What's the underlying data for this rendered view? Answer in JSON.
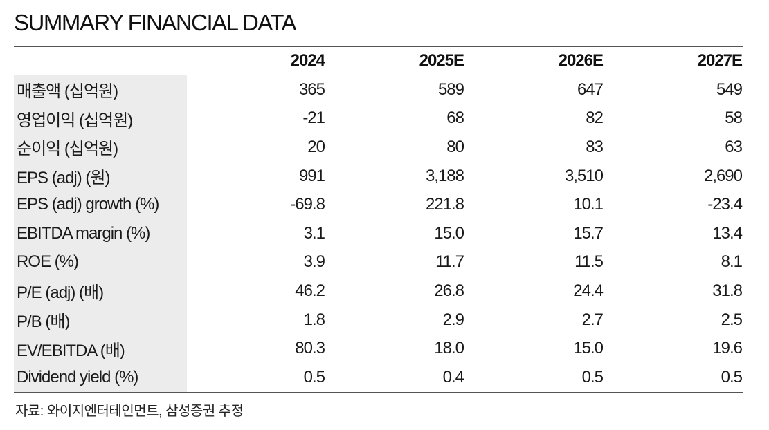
{
  "title": "SUMMARY FINANCIAL DATA",
  "table": {
    "columns": [
      "",
      "2024",
      "2025E",
      "2026E",
      "2027E"
    ],
    "rows": [
      {
        "label": "매출액 (십억원)",
        "values": [
          "365",
          "589",
          "647",
          "549"
        ]
      },
      {
        "label": "영업이익 (십억원)",
        "values": [
          "-21",
          "68",
          "82",
          "58"
        ]
      },
      {
        "label": "순이익 (십억원)",
        "values": [
          "20",
          "80",
          "83",
          "63"
        ]
      },
      {
        "label": "EPS (adj) (원)",
        "values": [
          "991",
          "3,188",
          "3,510",
          "2,690"
        ]
      },
      {
        "label": "EPS (adj) growth (%)",
        "values": [
          "-69.8",
          "221.8",
          "10.1",
          "-23.4"
        ]
      },
      {
        "label": "EBITDA margin (%)",
        "values": [
          "3.1",
          "15.0",
          "15.7",
          "13.4"
        ]
      },
      {
        "label": "ROE (%)",
        "values": [
          "3.9",
          "11.7",
          "11.5",
          "8.1"
        ]
      },
      {
        "label": "P/E (adj) (배)",
        "values": [
          "46.2",
          "26.8",
          "24.4",
          "31.8"
        ]
      },
      {
        "label": "P/B (배)",
        "values": [
          "1.8",
          "2.9",
          "2.7",
          "2.5"
        ]
      },
      {
        "label": "EV/EBITDA (배)",
        "values": [
          "80.3",
          "18.0",
          "15.0",
          "19.6"
        ]
      },
      {
        "label": "Dividend yield (%)",
        "values": [
          "0.5",
          "0.4",
          "0.5",
          "0.5"
        ]
      }
    ]
  },
  "source": "자료: 와이지엔터테인먼트, 삼성증권 추정",
  "colors": {
    "label_background": "#ececec",
    "rule": "#555555",
    "text": "#1a1a1a"
  }
}
